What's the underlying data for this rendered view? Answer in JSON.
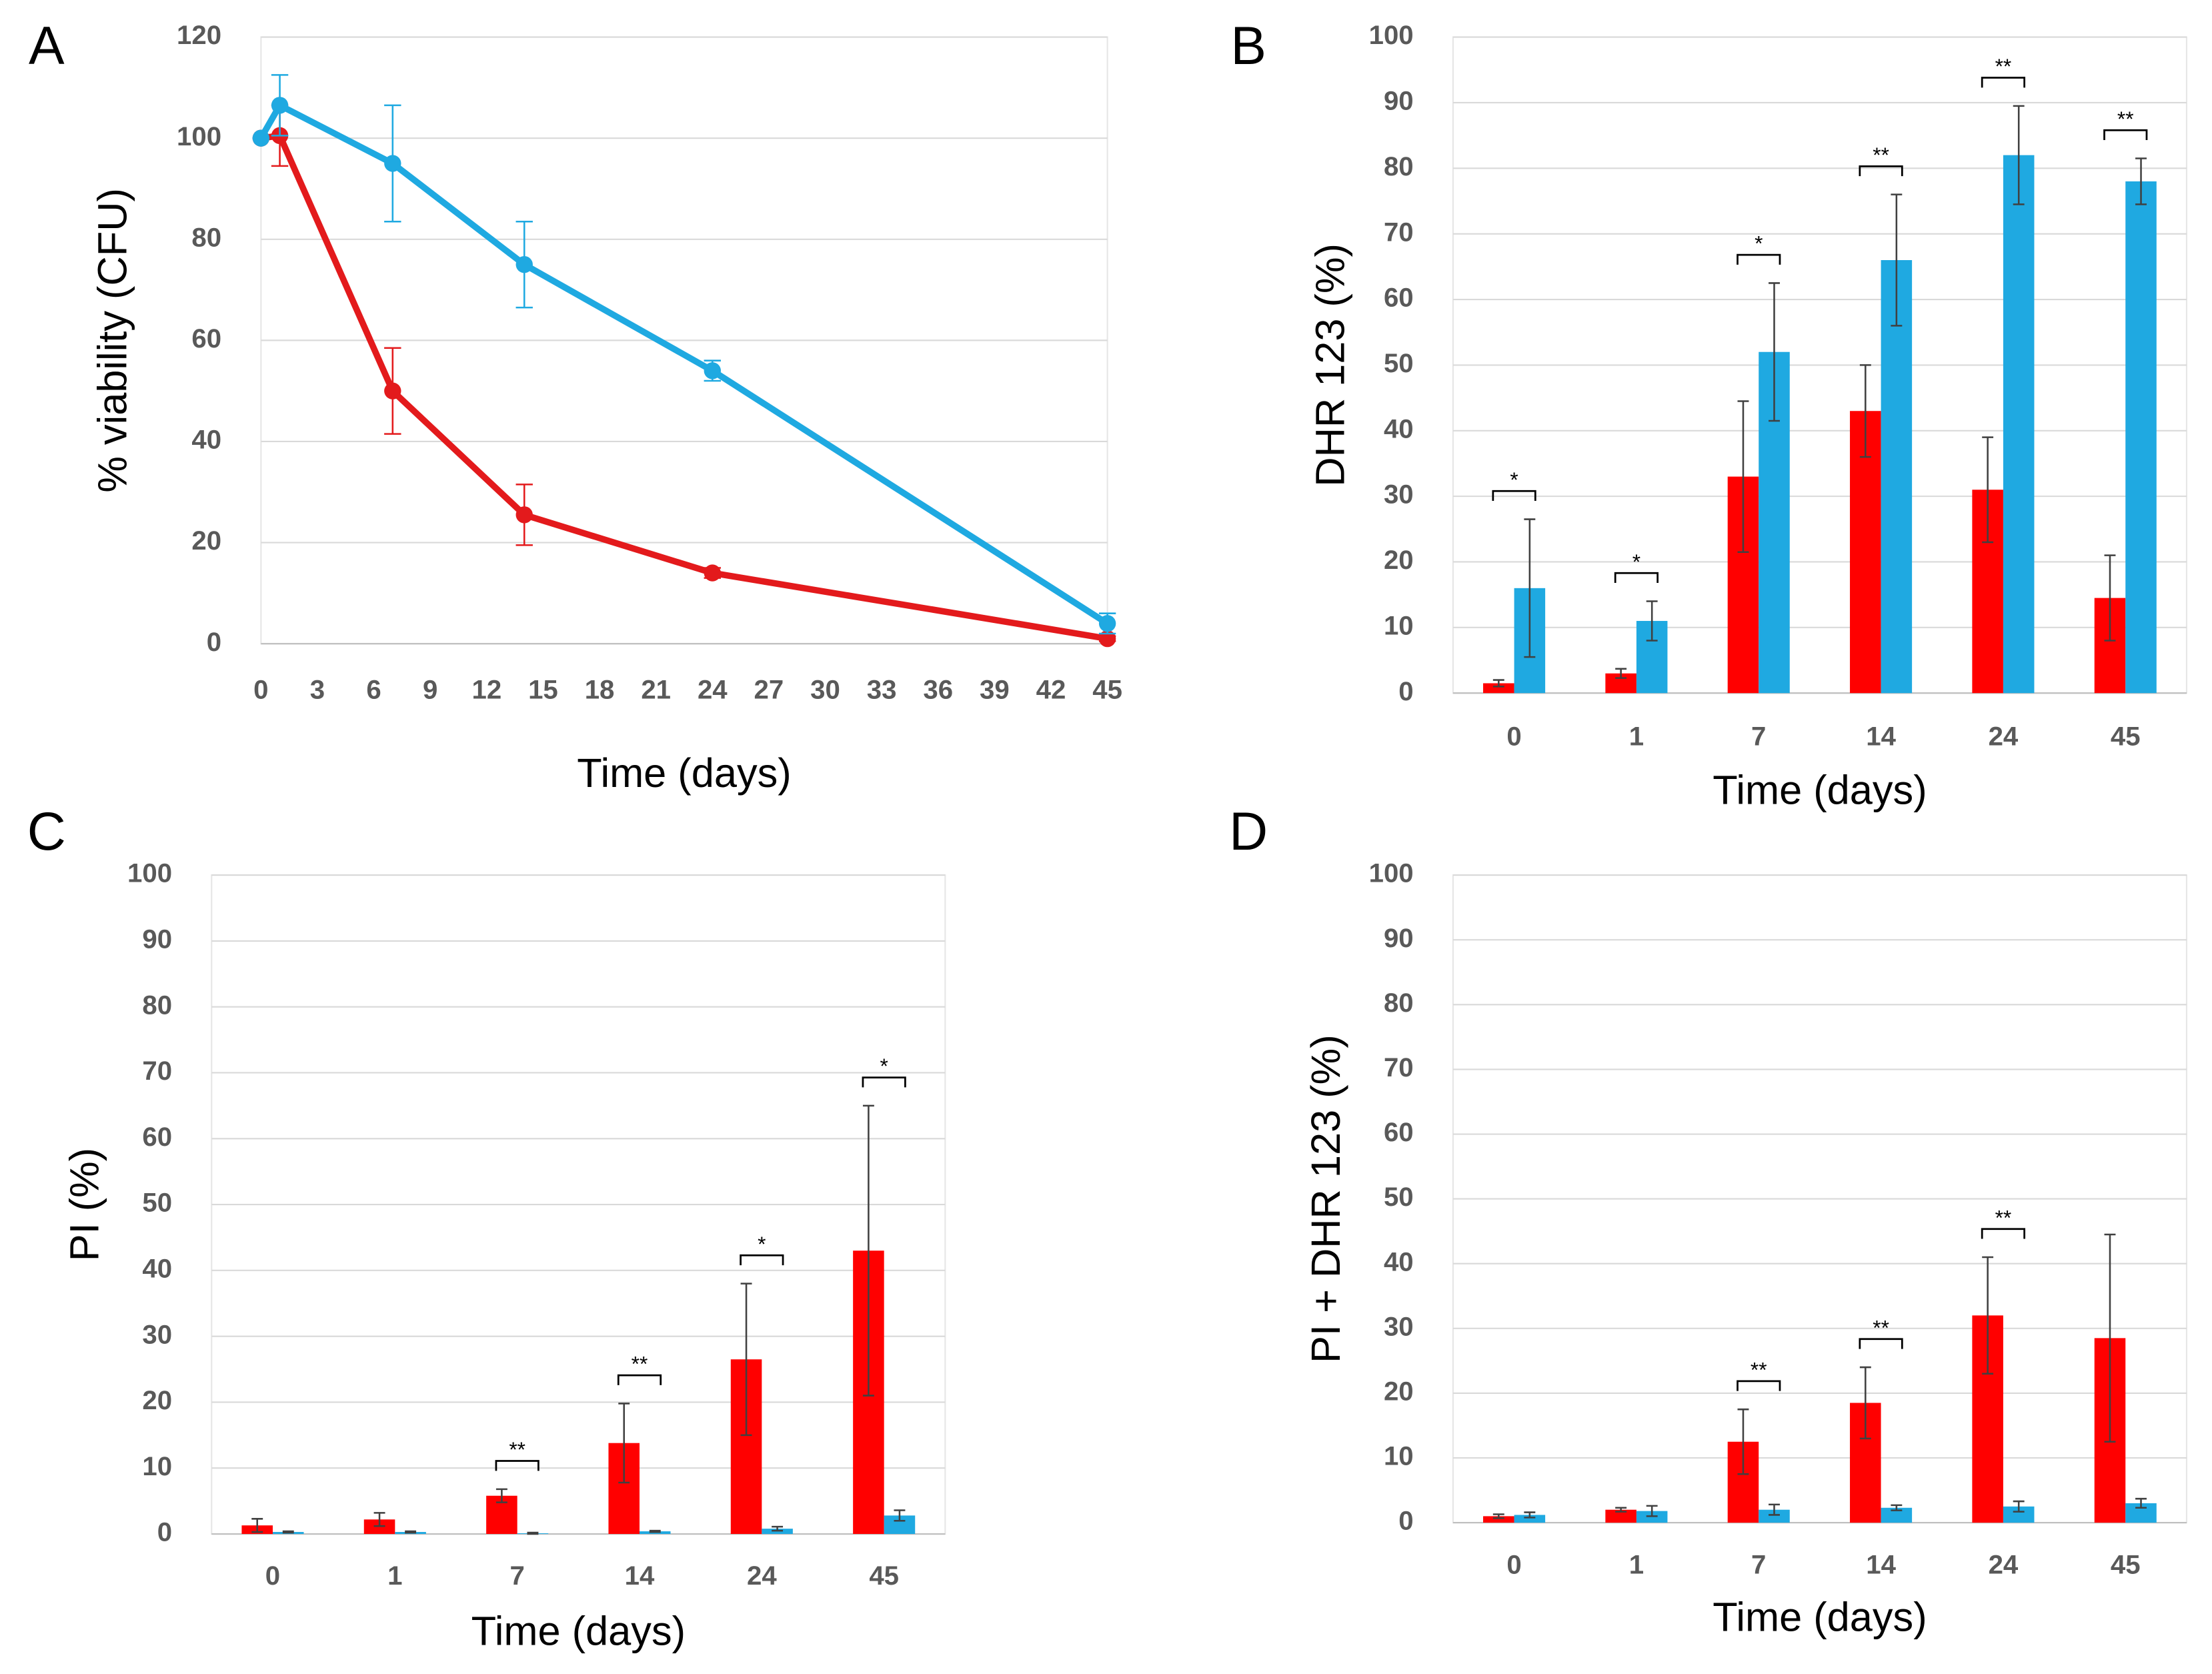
{
  "chart_data": [
    {
      "type": "line",
      "panel": "A",
      "xlabel": "Time (days)",
      "ylabel": "% viability (CFU)",
      "x": [
        0,
        1,
        7,
        14,
        24,
        45
      ],
      "xlim": [
        0,
        45
      ],
      "xticks": [
        0,
        3,
        6,
        9,
        12,
        15,
        18,
        21,
        24,
        27,
        30,
        33,
        36,
        39,
        42,
        45
      ],
      "ylim": [
        0,
        120
      ],
      "yticks": [
        0,
        20,
        40,
        60,
        80,
        100,
        120
      ],
      "grid": true,
      "series": [
        {
          "color": "#e31a1c",
          "values": [
            100,
            100.5,
            50,
            25.5,
            14,
            1
          ],
          "errors": [
            0,
            6,
            8.5,
            6,
            1,
            0.5
          ]
        },
        {
          "color": "#1fa9e1",
          "values": [
            100,
            106.5,
            95,
            75,
            54,
            4
          ],
          "errors": [
            0,
            6,
            11.5,
            8.5,
            2,
            2
          ]
        }
      ]
    },
    {
      "type": "bar",
      "panel": "B",
      "xlabel": "Time (days)",
      "ylabel": "DHR 123 (%)",
      "categories": [
        "0",
        "1",
        "7",
        "14",
        "24",
        "45"
      ],
      "ylim": [
        0,
        100
      ],
      "yticks": [
        0,
        10,
        20,
        30,
        40,
        50,
        60,
        70,
        80,
        90,
        100
      ],
      "grid": true,
      "series": [
        {
          "color": "#ff0000",
          "values": [
            1.5,
            3,
            33,
            43,
            31,
            14.5
          ],
          "errors": [
            0.5,
            0.7,
            11.5,
            7,
            8,
            6.5
          ]
        },
        {
          "color": "#1fa9e1",
          "values": [
            16,
            11,
            52,
            66,
            82,
            78
          ],
          "errors": [
            10.5,
            3,
            10.5,
            10,
            7.5,
            3.5
          ]
        }
      ],
      "significance": [
        "*",
        "*",
        "*",
        "**",
        "**",
        "**"
      ]
    },
    {
      "type": "bar",
      "panel": "C",
      "xlabel": "Time (days)",
      "ylabel": "PI (%)",
      "categories": [
        "0",
        "1",
        "7",
        "14",
        "24",
        "45"
      ],
      "ylim": [
        0,
        100
      ],
      "yticks": [
        0,
        10,
        20,
        30,
        40,
        50,
        60,
        70,
        80,
        90,
        100
      ],
      "grid": true,
      "series": [
        {
          "color": "#ff0000",
          "values": [
            1.3,
            2.2,
            5.8,
            13.8,
            26.5,
            43
          ],
          "errors": [
            1,
            1,
            1,
            6,
            11.5,
            22
          ]
        },
        {
          "color": "#1fa9e1",
          "values": [
            0.3,
            0.3,
            0.1,
            0.4,
            0.8,
            2.8
          ],
          "errors": [
            0.1,
            0.1,
            0.1,
            0.1,
            0.3,
            0.8
          ]
        }
      ],
      "significance": [
        null,
        null,
        "**",
        "**",
        "*",
        "*"
      ]
    },
    {
      "type": "bar",
      "panel": "D",
      "xlabel": "Time (days)",
      "ylabel": "PI + DHR 123 (%)",
      "categories": [
        "0",
        "1",
        "7",
        "14",
        "24",
        "45"
      ],
      "ylim": [
        0,
        100
      ],
      "yticks": [
        0,
        10,
        20,
        30,
        40,
        50,
        60,
        70,
        80,
        90,
        100
      ],
      "grid": true,
      "series": [
        {
          "color": "#ff0000",
          "values": [
            1,
            2,
            12.5,
            18.5,
            32,
            28.5
          ],
          "errors": [
            0.3,
            0.3,
            5,
            5.5,
            9,
            16
          ]
        },
        {
          "color": "#1fa9e1",
          "values": [
            1.2,
            1.8,
            2,
            2.3,
            2.5,
            3
          ],
          "errors": [
            0.4,
            0.8,
            0.8,
            0.4,
            0.8,
            0.7
          ]
        }
      ],
      "significance": [
        null,
        null,
        "**",
        "**",
        "**",
        null
      ]
    }
  ]
}
